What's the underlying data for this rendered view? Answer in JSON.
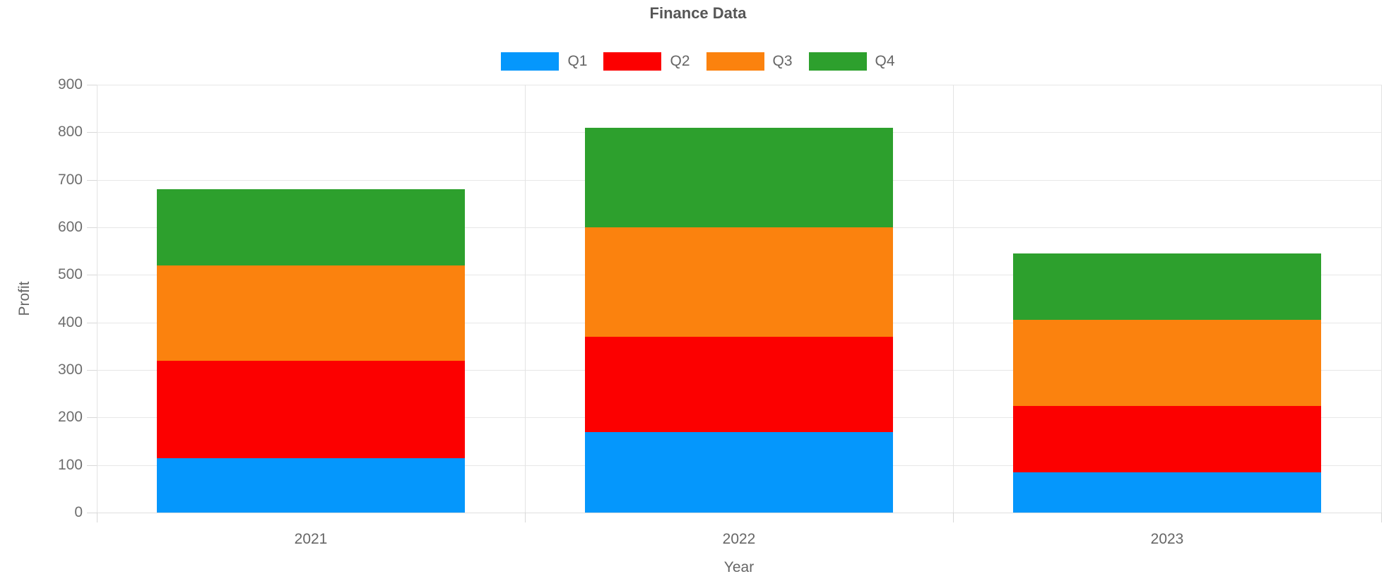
{
  "chart": {
    "title": "Finance Data",
    "x_axis_title": "Year",
    "y_axis_title": "Profit"
  },
  "legend": {
    "items": [
      {
        "label": "Q1",
        "color": "#0597FC"
      },
      {
        "label": "Q2",
        "color": "#FC0000"
      },
      {
        "label": "Q3",
        "color": "#FB820E"
      },
      {
        "label": "Q4",
        "color": "#2DA02D"
      }
    ]
  },
  "chart_data": {
    "type": "bar",
    "stacked": true,
    "title": "Finance Data",
    "xlabel": "Year",
    "ylabel": "Profit",
    "categories": [
      "2021",
      "2022",
      "2023"
    ],
    "series": [
      {
        "name": "Q1",
        "color": "#0597FC",
        "values": [
          115,
          170,
          85
        ]
      },
      {
        "name": "Q2",
        "color": "#FC0000",
        "values": [
          205,
          200,
          140
        ]
      },
      {
        "name": "Q3",
        "color": "#FB820E",
        "values": [
          200,
          230,
          180
        ]
      },
      {
        "name": "Q4",
        "color": "#2DA02D",
        "values": [
          160,
          210,
          140
        ]
      }
    ],
    "totals": [
      680,
      810,
      545
    ],
    "ylim": [
      0,
      900
    ],
    "yticks": [
      0,
      100,
      200,
      300,
      400,
      500,
      600,
      700,
      800,
      900
    ],
    "grid": true,
    "legend_position": "top-center"
  }
}
